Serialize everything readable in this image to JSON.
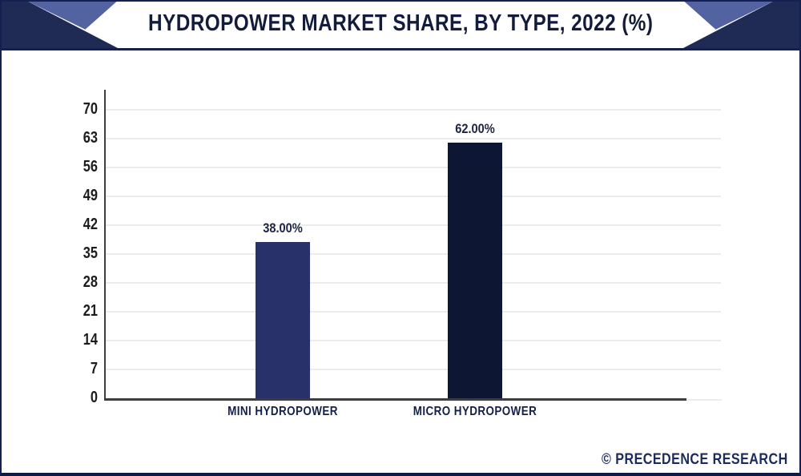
{
  "header": {
    "title": "HYDROPOWER MARKET SHARE, BY TYPE, 2022 (%)"
  },
  "footer": {
    "watermark": "© PRECEDENCE RESEARCH"
  },
  "colors": {
    "header_dark": "#1F2A55",
    "header_accent": "#5363A2",
    "frame_border": "#142052",
    "axis_line": "#3D3D3D",
    "gridline": "#ECECEC",
    "title_text": "#131C3B",
    "tick_text": "#1C1C1C",
    "watermark_text": "#1B2B5E"
  },
  "chart_data": {
    "type": "bar",
    "title": "HYDROPOWER MARKET SHARE, BY TYPE, 2022 (%)",
    "categories": [
      "MINI HYDROPOWER",
      "MICRO HYDROPOWER"
    ],
    "values": [
      38,
      62
    ],
    "value_labels": [
      "38.00%",
      "62.00%"
    ],
    "bar_colors": [
      "#28316A",
      "#0D1733"
    ],
    "xlabel": "",
    "ylabel": "",
    "ylim": [
      0,
      70
    ],
    "yticks": [
      0,
      7,
      14,
      21,
      28,
      35,
      42,
      49,
      56,
      63,
      70
    ],
    "grid": true,
    "legend": false
  }
}
